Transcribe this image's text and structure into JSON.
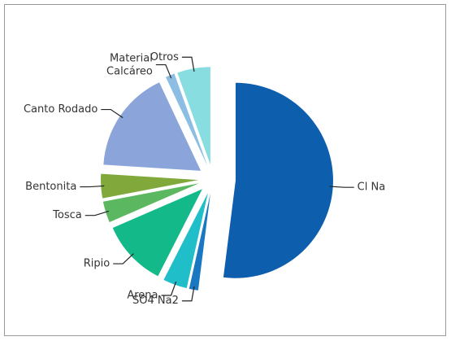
{
  "chart_data": {
    "type": "pie",
    "categories": [
      "Cl Na",
      "SO4 Na2",
      "Arena",
      "Ripio",
      "Tosca",
      "Bentonita",
      "Canto Rodado",
      "Material Calcáreo",
      "Otros"
    ],
    "values": [
      52,
      1.5,
      4,
      11,
      3.5,
      4,
      17,
      1.5,
      5.5
    ],
    "colors": [
      "#0d5fae",
      "#1a78c2",
      "#1fbec9",
      "#14b98a",
      "#5cb860",
      "#80a83a",
      "#8ba4d9",
      "#8cbde3",
      "#88dde1"
    ],
    "exploded": true
  }
}
